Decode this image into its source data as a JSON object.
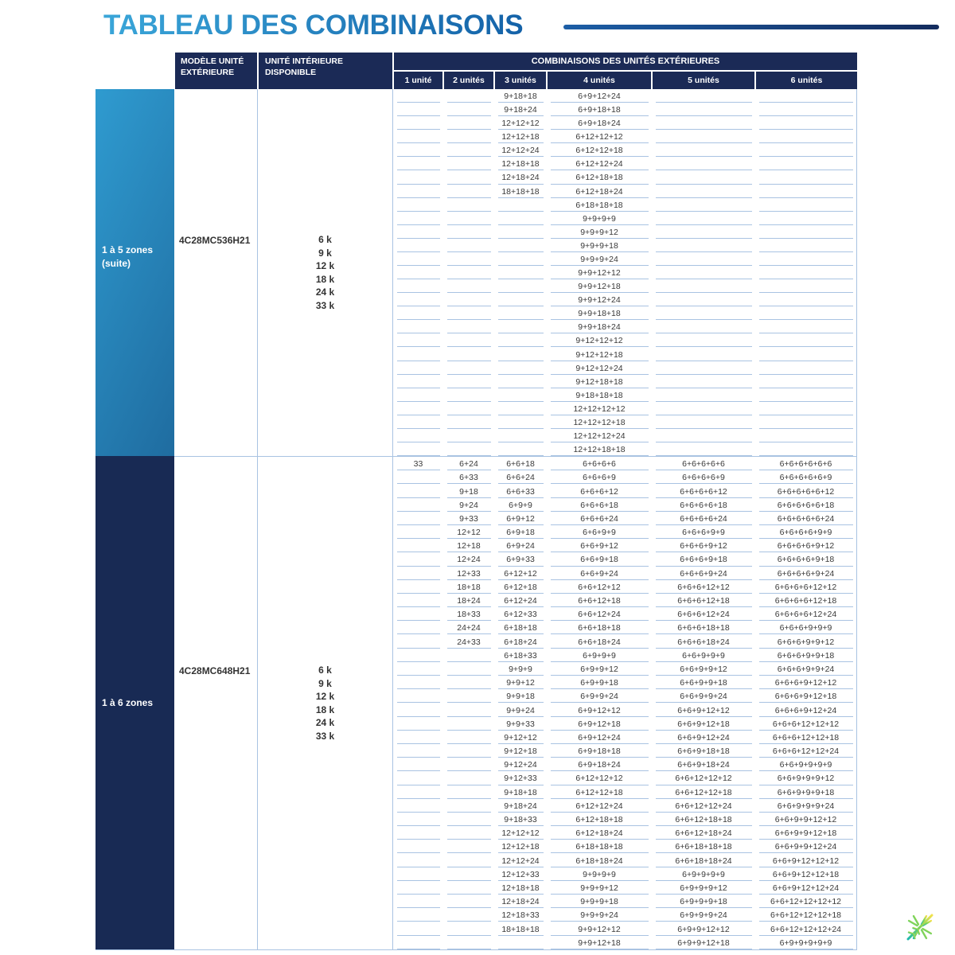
{
  "title": "TABLEAU DES COMBINAISONS",
  "header": {
    "model": "MODÈLE UNITÉ EXTÉRIEURE",
    "indoor": "UNITÉ INTÉRIEURE DISPONIBLE",
    "combos": "COMBINAISONS DES UNITÉS EXTÉRIEURES",
    "units": [
      "1 unité",
      "2 unités",
      "3 unités",
      "4 unités",
      "5 unités",
      "6 unités"
    ]
  },
  "sections": [
    {
      "zone": "1 à 5 zones\n(suite)",
      "model": "4C28MC536H21",
      "indoor_units": [
        "6 k",
        "9 k",
        "12 k",
        "18 k",
        "24 k",
        "33 k"
      ],
      "rows": [
        [
          "",
          "",
          "9+18+18",
          "6+9+12+24",
          "",
          ""
        ],
        [
          "",
          "",
          "9+18+24",
          "6+9+18+18",
          "",
          ""
        ],
        [
          "",
          "",
          "12+12+12",
          "6+9+18+24",
          "",
          ""
        ],
        [
          "",
          "",
          "12+12+18",
          "6+12+12+12",
          "",
          ""
        ],
        [
          "",
          "",
          "12+12+24",
          "6+12+12+18",
          "",
          ""
        ],
        [
          "",
          "",
          "12+18+18",
          "6+12+12+24",
          "",
          ""
        ],
        [
          "",
          "",
          "12+18+24",
          "6+12+18+18",
          "",
          ""
        ],
        [
          "",
          "",
          "18+18+18",
          "6+12+18+24",
          "",
          ""
        ],
        [
          "",
          "",
          "",
          "6+18+18+18",
          "",
          ""
        ],
        [
          "",
          "",
          "",
          "9+9+9+9",
          "",
          ""
        ],
        [
          "",
          "",
          "",
          "9+9+9+12",
          "",
          ""
        ],
        [
          "",
          "",
          "",
          "9+9+9+18",
          "",
          ""
        ],
        [
          "",
          "",
          "",
          "9+9+9+24",
          "",
          ""
        ],
        [
          "",
          "",
          "",
          "9+9+12+12",
          "",
          ""
        ],
        [
          "",
          "",
          "",
          "9+9+12+18",
          "",
          ""
        ],
        [
          "",
          "",
          "",
          "9+9+12+24",
          "",
          ""
        ],
        [
          "",
          "",
          "",
          "9+9+18+18",
          "",
          ""
        ],
        [
          "",
          "",
          "",
          "9+9+18+24",
          "",
          ""
        ],
        [
          "",
          "",
          "",
          "9+12+12+12",
          "",
          ""
        ],
        [
          "",
          "",
          "",
          "9+12+12+18",
          "",
          ""
        ],
        [
          "",
          "",
          "",
          "9+12+12+24",
          "",
          ""
        ],
        [
          "",
          "",
          "",
          "9+12+18+18",
          "",
          ""
        ],
        [
          "",
          "",
          "",
          "9+18+18+18",
          "",
          ""
        ],
        [
          "",
          "",
          "",
          "12+12+12+12",
          "",
          ""
        ],
        [
          "",
          "",
          "",
          "12+12+12+18",
          "",
          ""
        ],
        [
          "",
          "",
          "",
          "12+12+12+24",
          "",
          ""
        ],
        [
          "",
          "",
          "",
          "12+12+18+18",
          "",
          ""
        ]
      ]
    },
    {
      "zone": "1 à 6 zones",
      "model": "4C28MC648H21",
      "indoor_units": [
        "6 k",
        "9 k",
        "12 k",
        "18 k",
        "24 k",
        "33 k"
      ],
      "rows": [
        [
          "33",
          "6+24",
          "6+6+18",
          "6+6+6+6",
          "6+6+6+6+6",
          "6+6+6+6+6+6"
        ],
        [
          "",
          "6+33",
          "6+6+24",
          "6+6+6+9",
          "6+6+6+6+9",
          "6+6+6+6+6+9"
        ],
        [
          "",
          "9+18",
          "6+6+33",
          "6+6+6+12",
          "6+6+6+6+12",
          "6+6+6+6+6+12"
        ],
        [
          "",
          "9+24",
          "6+9+9",
          "6+6+6+18",
          "6+6+6+6+18",
          "6+6+6+6+6+18"
        ],
        [
          "",
          "9+33",
          "6+9+12",
          "6+6+6+24",
          "6+6+6+6+24",
          "6+6+6+6+6+24"
        ],
        [
          "",
          "12+12",
          "6+9+18",
          "6+6+9+9",
          "6+6+6+9+9",
          "6+6+6+6+9+9"
        ],
        [
          "",
          "12+18",
          "6+9+24",
          "6+6+9+12",
          "6+6+6+9+12",
          "6+6+6+6+9+12"
        ],
        [
          "",
          "12+24",
          "6+9+33",
          "6+6+9+18",
          "6+6+6+9+18",
          "6+6+6+6+9+18"
        ],
        [
          "",
          "12+33",
          "6+12+12",
          "6+6+9+24",
          "6+6+6+9+24",
          "6+6+6+6+9+24"
        ],
        [
          "",
          "18+18",
          "6+12+18",
          "6+6+12+12",
          "6+6+6+12+12",
          "6+6+6+6+12+12"
        ],
        [
          "",
          "18+24",
          "6+12+24",
          "6+6+12+18",
          "6+6+6+12+18",
          "6+6+6+6+12+18"
        ],
        [
          "",
          "18+33",
          "6+12+33",
          "6+6+12+24",
          "6+6+6+12+24",
          "6+6+6+6+12+24"
        ],
        [
          "",
          "24+24",
          "6+18+18",
          "6+6+18+18",
          "6+6+6+18+18",
          "6+6+6+9+9+9"
        ],
        [
          "",
          "24+33",
          "6+18+24",
          "6+6+18+24",
          "6+6+6+18+24",
          "6+6+6+9+9+12"
        ],
        [
          "",
          "",
          "6+18+33",
          "6+9+9+9",
          "6+6+9+9+9",
          "6+6+6+9+9+18"
        ],
        [
          "",
          "",
          "9+9+9",
          "6+9+9+12",
          "6+6+9+9+12",
          "6+6+6+9+9+24"
        ],
        [
          "",
          "",
          "9+9+12",
          "6+9+9+18",
          "6+6+9+9+18",
          "6+6+6+9+12+12"
        ],
        [
          "",
          "",
          "9+9+18",
          "6+9+9+24",
          "6+6+9+9+24",
          "6+6+6+9+12+18"
        ],
        [
          "",
          "",
          "9+9+24",
          "6+9+12+12",
          "6+6+9+12+12",
          "6+6+6+9+12+24"
        ],
        [
          "",
          "",
          "9+9+33",
          "6+9+12+18",
          "6+6+9+12+18",
          "6+6+6+12+12+12"
        ],
        [
          "",
          "",
          "9+12+12",
          "6+9+12+24",
          "6+6+9+12+24",
          "6+6+6+12+12+18"
        ],
        [
          "",
          "",
          "9+12+18",
          "6+9+18+18",
          "6+6+9+18+18",
          "6+6+6+12+12+24"
        ],
        [
          "",
          "",
          "9+12+24",
          "6+9+18+24",
          "6+6+9+18+24",
          "6+6+9+9+9+9"
        ],
        [
          "",
          "",
          "9+12+33",
          "6+12+12+12",
          "6+6+12+12+12",
          "6+6+9+9+9+12"
        ],
        [
          "",
          "",
          "9+18+18",
          "6+12+12+18",
          "6+6+12+12+18",
          "6+6+9+9+9+18"
        ],
        [
          "",
          "",
          "9+18+24",
          "6+12+12+24",
          "6+6+12+12+24",
          "6+6+9+9+9+24"
        ],
        [
          "",
          "",
          "9+18+33",
          "6+12+18+18",
          "6+6+12+18+18",
          "6+6+9+9+12+12"
        ],
        [
          "",
          "",
          "12+12+12",
          "6+12+18+24",
          "6+6+12+18+24",
          "6+6+9+9+12+18"
        ],
        [
          "",
          "",
          "12+12+18",
          "6+18+18+18",
          "6+6+18+18+18",
          "6+6+9+9+12+24"
        ],
        [
          "",
          "",
          "12+12+24",
          "6+18+18+24",
          "6+6+18+18+24",
          "6+6+9+12+12+12"
        ],
        [
          "",
          "",
          "12+12+33",
          "9+9+9+9",
          "6+9+9+9+9",
          "6+6+9+12+12+18"
        ],
        [
          "",
          "",
          "12+18+18",
          "9+9+9+12",
          "6+9+9+9+12",
          "6+6+9+12+12+24"
        ],
        [
          "",
          "",
          "12+18+24",
          "9+9+9+18",
          "6+9+9+9+18",
          "6+6+12+12+12+12"
        ],
        [
          "",
          "",
          "12+18+33",
          "9+9+9+24",
          "6+9+9+9+24",
          "6+6+12+12+12+18"
        ],
        [
          "",
          "",
          "18+18+18",
          "9+9+12+12",
          "6+9+9+12+12",
          "6+6+12+12+12+24"
        ],
        [
          "",
          "",
          "",
          "9+9+12+18",
          "6+9+9+12+18",
          "6+9+9+9+9+9"
        ]
      ]
    }
  ],
  "colors": {
    "navy": "#1b2a56",
    "zone1_gradient_start": "#2f9bd0",
    "zone1_gradient_end": "#1f6ca0",
    "zone2": "#182a54",
    "underline": "#a9c3e2",
    "title_gradient_start": "#3aa6d9",
    "title_gradient_end": "#1462a8"
  },
  "logo": "snowflake-logo"
}
